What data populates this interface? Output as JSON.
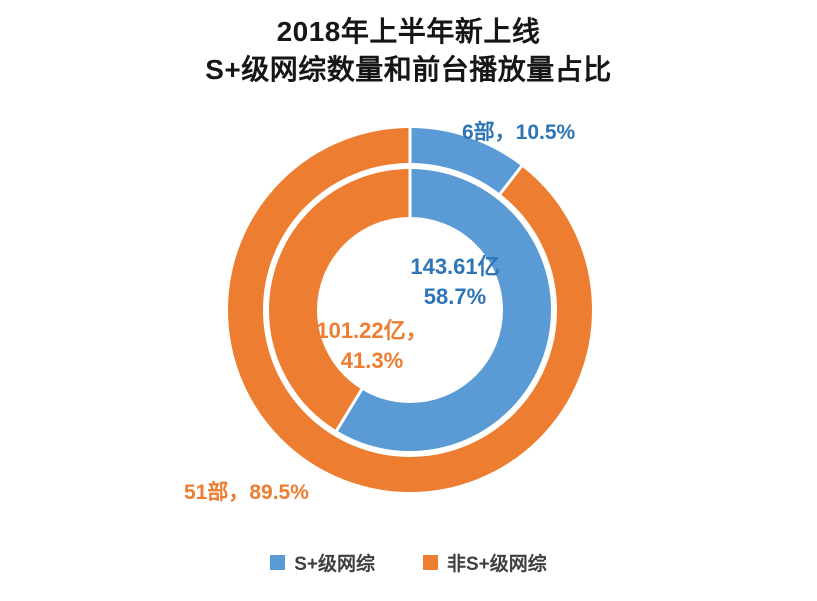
{
  "title": {
    "line1": "2018年上半年新上线",
    "line2": "S+级网综数量和前台播放量占比"
  },
  "colors": {
    "segment_blue": "#5B9BD5",
    "segment_orange": "#ED7D31",
    "text_blue": "#2E75B6",
    "text_orange": "#ED7D31",
    "title_text": "#161616",
    "legend_text": "#3F3F3F",
    "background": "#FFFFFF"
  },
  "annotations": {
    "outer_blue": "6部，10.5%",
    "outer_orange": "51部，89.5%",
    "inner_blue_line1": "143.61亿",
    "inner_blue_line2": "58.7%",
    "inner_orange_line1": "101.22亿，",
    "inner_orange_line2": "41.3%"
  },
  "chart_data": {
    "type": "pie",
    "subtype": "double-ring-donut",
    "title": "2018年上半年新上线 S+级网综数量和前台播放量占比",
    "legend_position": "bottom",
    "start_angle": "top",
    "direction": "clockwise",
    "rings": [
      {
        "name": "outer-ring-count",
        "unit": "部",
        "segments": [
          {
            "series": "S+级网综",
            "value": 6,
            "percent": 10.5,
            "color": "#5B9BD5",
            "label": "6部，10.5%"
          },
          {
            "series": "非S+级网综",
            "value": 51,
            "percent": 89.5,
            "color": "#ED7D31",
            "label": "51部，89.5%"
          }
        ]
      },
      {
        "name": "inner-ring-playback",
        "unit": "亿",
        "segments": [
          {
            "series": "S+级网综",
            "value": 143.61,
            "percent": 58.7,
            "color": "#5B9BD5",
            "label": "143.61亿 58.7%"
          },
          {
            "series": "非S+级网综",
            "value": 101.22,
            "percent": 41.3,
            "color": "#ED7D31",
            "label": "101.22亿，41.3%"
          }
        ]
      }
    ],
    "legend": [
      {
        "label": "S+级网综",
        "color": "#5B9BD5"
      },
      {
        "label": "非S+级网综",
        "color": "#ED7D31"
      }
    ]
  }
}
